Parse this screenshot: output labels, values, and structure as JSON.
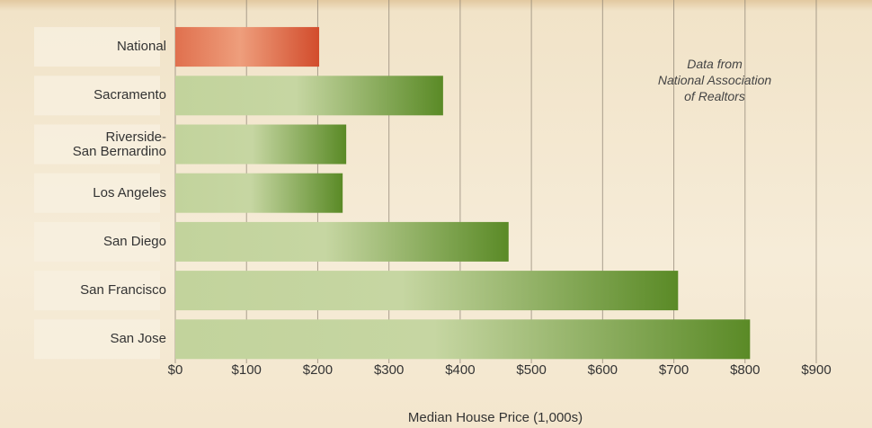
{
  "chart_data": {
    "type": "bar",
    "orientation": "horizontal",
    "categories": [
      "National",
      "Sacramento",
      "Riverside-\nSan Bernardino",
      "Los Angeles",
      "San Diego",
      "San Francisco",
      "San Jose"
    ],
    "values": [
      202,
      376,
      240,
      235,
      468,
      706,
      807
    ],
    "colors": [
      "#d24c2c",
      "#5a8a26",
      "#5a8a26",
      "#5a8a26",
      "#5a8a26",
      "#5a8a26",
      "#5a8a26"
    ],
    "xlim": [
      0,
      900
    ],
    "xticks": [
      {
        "value": 0,
        "label": "$0"
      },
      {
        "value": 100,
        "label": "$100"
      },
      {
        "value": 200,
        "label": "$200"
      },
      {
        "value": 300,
        "label": "$300"
      },
      {
        "value": 400,
        "label": "$400"
      },
      {
        "value": 500,
        "label": "$500"
      },
      {
        "value": 600,
        "label": "$600"
      },
      {
        "value": 700,
        "label": "$700"
      },
      {
        "value": 800,
        "label": "$800"
      },
      {
        "value": 900,
        "label": "$900"
      }
    ],
    "xlabel": "Median House Price (1,000s)",
    "annotation": "Data from\nNational Association\nof Realtors",
    "grid": true
  }
}
